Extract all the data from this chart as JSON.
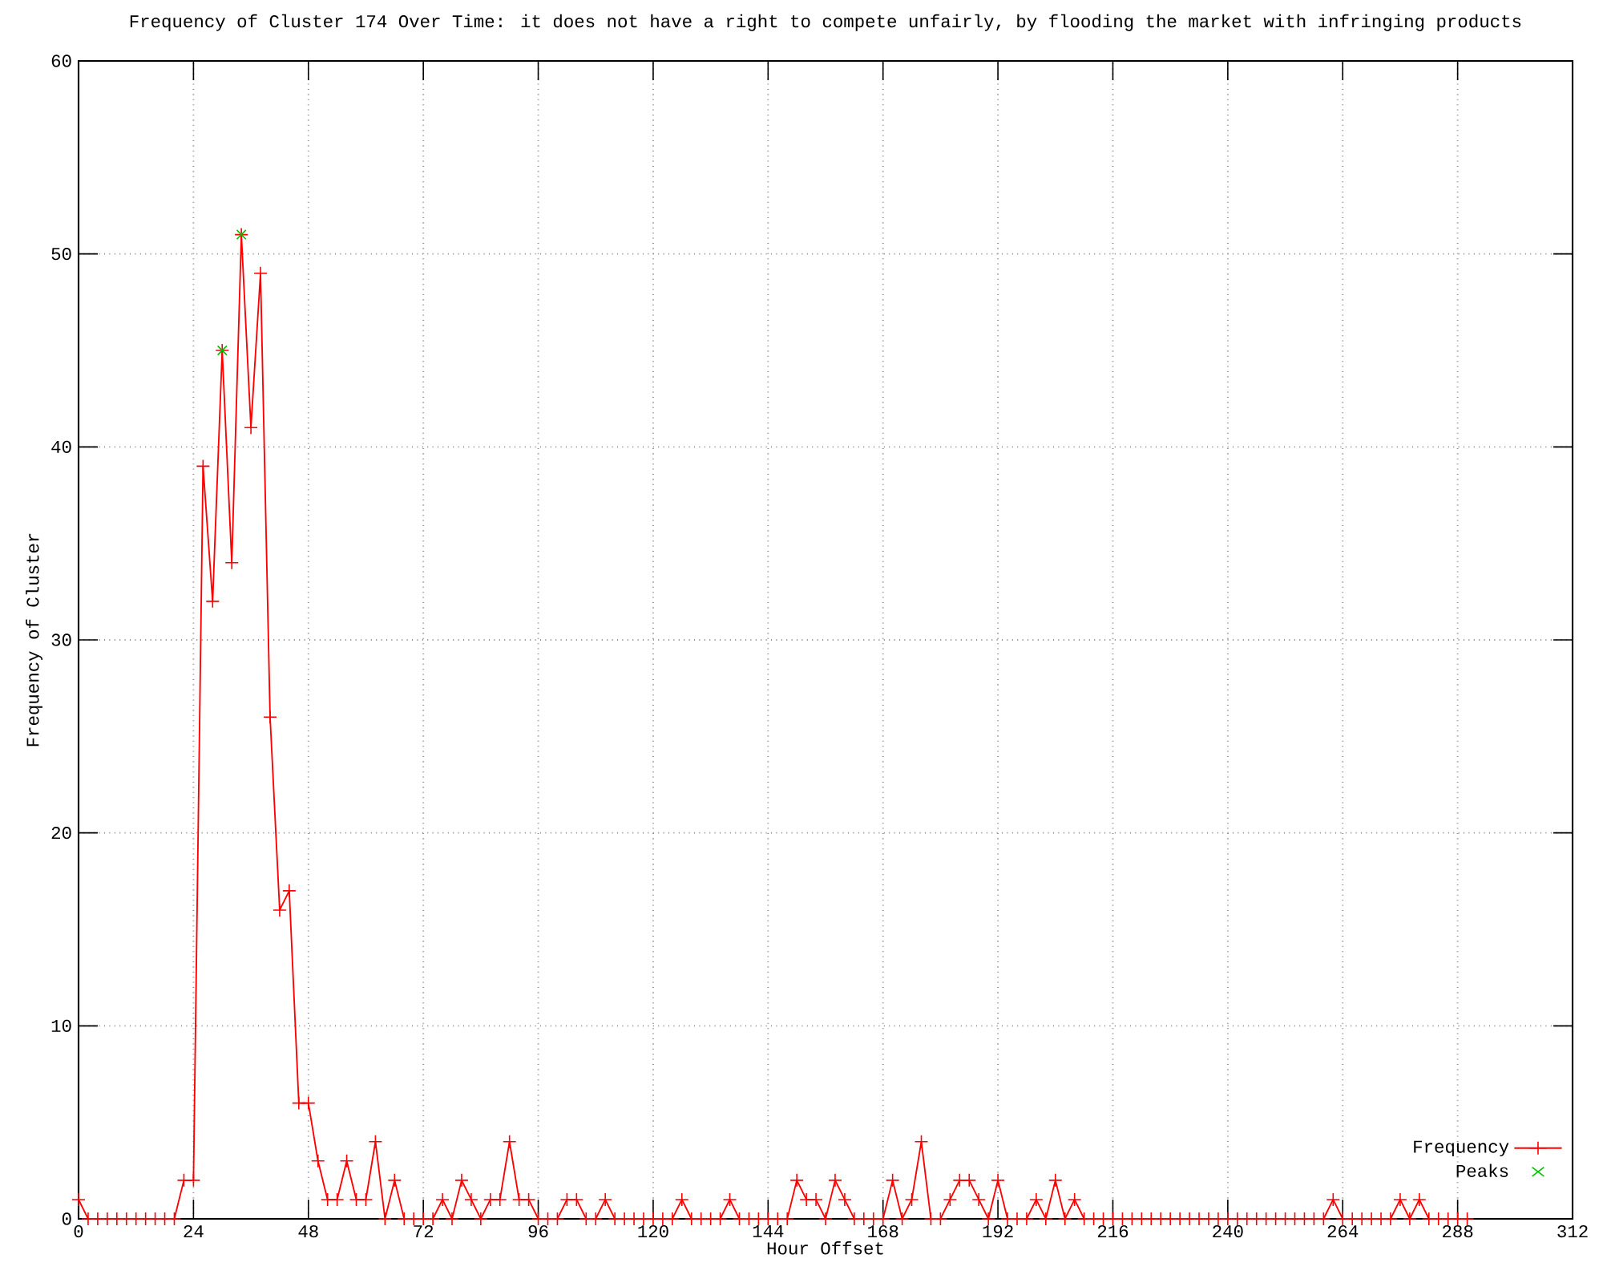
{
  "chart_data": {
    "type": "line",
    "title": "Frequency of Cluster 174 Over Time: it does not have a right to compete unfairly, by flooding the market with infringing products",
    "xlabel": "Hour Offset",
    "ylabel": "Frequency of Cluster",
    "x": [
      0,
      2,
      4,
      6,
      8,
      10,
      12,
      14,
      16,
      18,
      20,
      22,
      24,
      26,
      28,
      30,
      32,
      34,
      36,
      38,
      40,
      42,
      44,
      46,
      48,
      50,
      52,
      54,
      56,
      58,
      60,
      62,
      64,
      66,
      68,
      70,
      72,
      74,
      76,
      78,
      80,
      82,
      84,
      86,
      88,
      90,
      92,
      94,
      96,
      98,
      100,
      102,
      104,
      106,
      108,
      110,
      112,
      114,
      116,
      118,
      120,
      122,
      124,
      126,
      128,
      130,
      132,
      134,
      136,
      138,
      140,
      142,
      144,
      146,
      148,
      150,
      152,
      154,
      156,
      158,
      160,
      162,
      164,
      166,
      168,
      170,
      172,
      174,
      176,
      178,
      180,
      182,
      184,
      186,
      188,
      190,
      192,
      194,
      196,
      198,
      200,
      202,
      204,
      206,
      208,
      210,
      212,
      214,
      216,
      218,
      220,
      222,
      224,
      226,
      228,
      230,
      232,
      234,
      236,
      238,
      240,
      242,
      244,
      246,
      248,
      250,
      252,
      254,
      256,
      258,
      260,
      262,
      264,
      266,
      268,
      270,
      272,
      274,
      276,
      278,
      280,
      282,
      284,
      286,
      288,
      290
    ],
    "series": [
      {
        "name": "Frequency",
        "color": "#ff0000",
        "marker": "cross",
        "line_style": "solid",
        "values": [
          1,
          0,
          0,
          0,
          0,
          0,
          0,
          0,
          0,
          0,
          0,
          2,
          2,
          39,
          32,
          45,
          34,
          51,
          41,
          49,
          26,
          16,
          17,
          6,
          6,
          3,
          1,
          1,
          3,
          1,
          1,
          4,
          0,
          2,
          0,
          0,
          0,
          0,
          1,
          0,
          2,
          1,
          0,
          1,
          1,
          4,
          1,
          1,
          0,
          0,
          0,
          1,
          1,
          0,
          0,
          1,
          0,
          0,
          0,
          0,
          0,
          0,
          0,
          1,
          0,
          0,
          0,
          0,
          1,
          0,
          0,
          0,
          0,
          0,
          0,
          2,
          1,
          1,
          0,
          2,
          1,
          0,
          0,
          0,
          0,
          2,
          0,
          1,
          4,
          0,
          0,
          1,
          2,
          2,
          1,
          0,
          2,
          0,
          0,
          0,
          1,
          0,
          2,
          0,
          1,
          0,
          0,
          0,
          0,
          0,
          0,
          0,
          0,
          0,
          0,
          0,
          0,
          0,
          0,
          0,
          0,
          0,
          0,
          0,
          0,
          0,
          0,
          0,
          0,
          0,
          0,
          1,
          0,
          0,
          0,
          0,
          0,
          0,
          1,
          0,
          1,
          0,
          0,
          0,
          0,
          0
        ]
      },
      {
        "name": "Peaks",
        "type": "scatter",
        "color": "#00c000",
        "marker": "cross",
        "x": [
          30,
          34
        ],
        "values": [
          45,
          51
        ]
      }
    ],
    "xlim": [
      0,
      312
    ],
    "xticks": [
      0,
      24,
      48,
      72,
      96,
      120,
      144,
      168,
      192,
      216,
      240,
      264,
      288,
      312
    ],
    "ylim": [
      0,
      60
    ],
    "yticks": [
      0,
      10,
      20,
      30,
      40,
      50,
      60
    ],
    "grid": true,
    "legend": "bottom right"
  }
}
